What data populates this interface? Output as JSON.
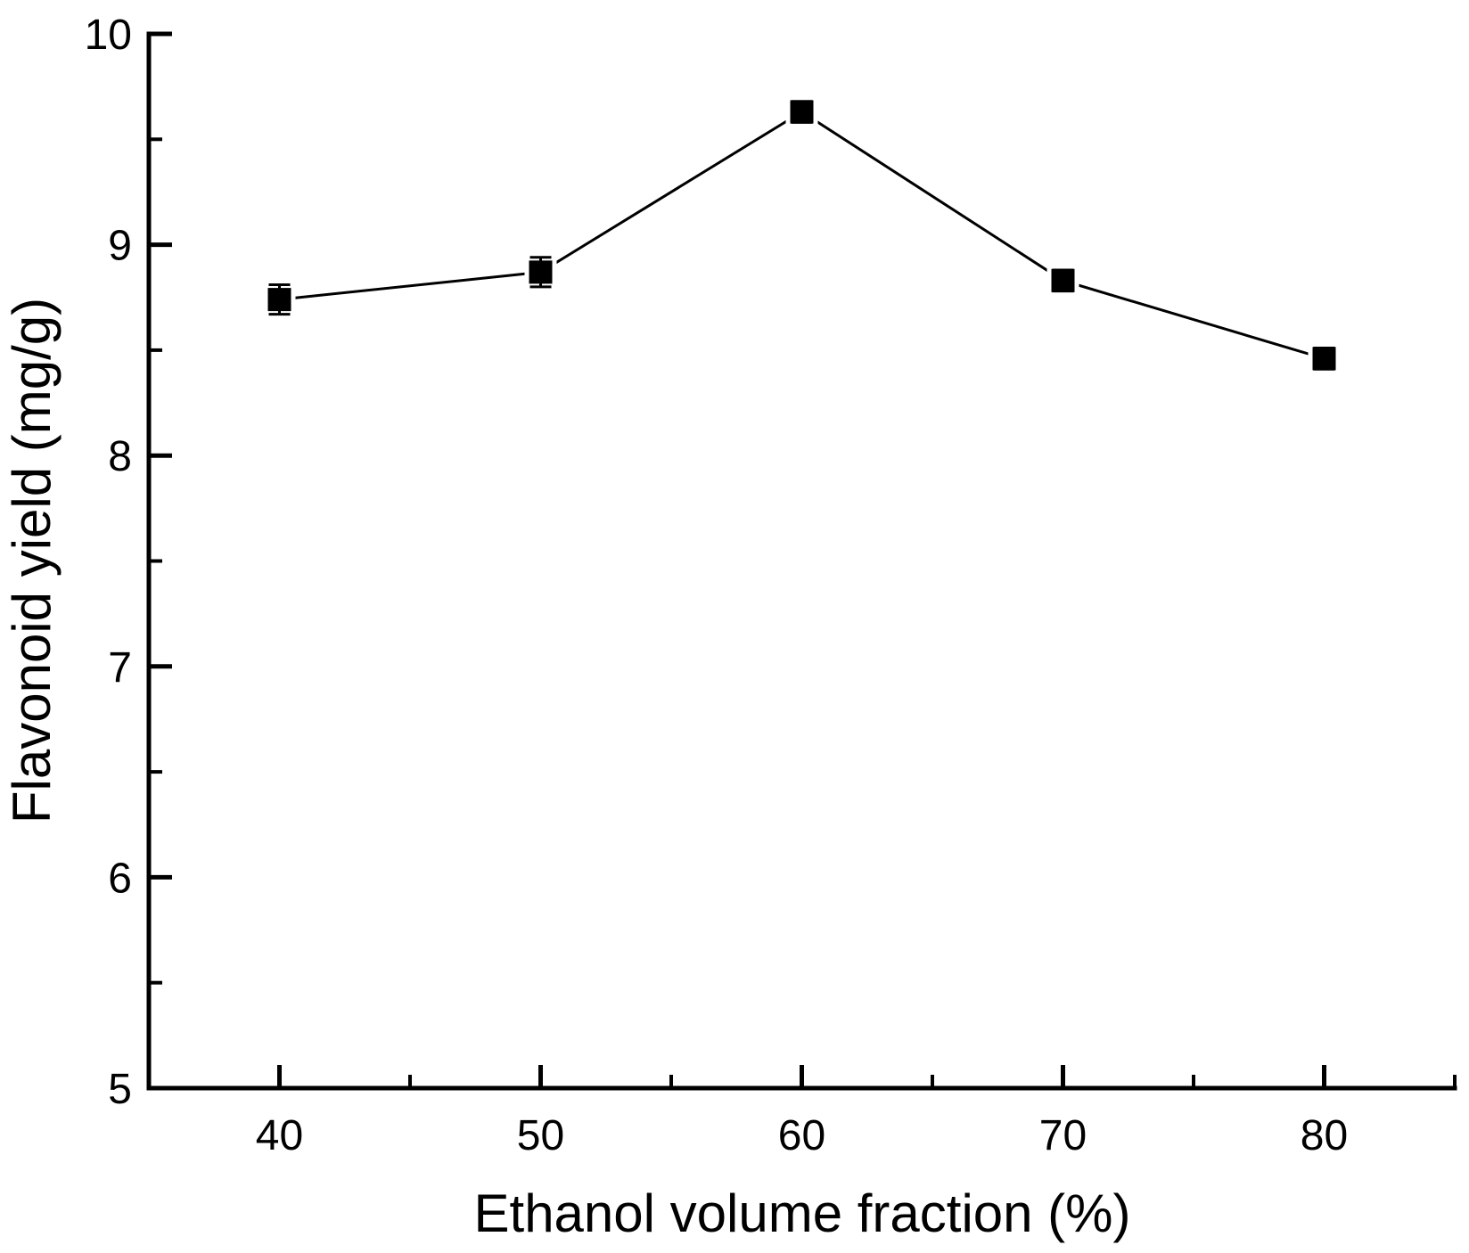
{
  "figure": {
    "background": "#ffffff"
  },
  "chart_data": {
    "type": "line",
    "title": "",
    "xlabel": "Ethanol volume fraction (%)",
    "ylabel": "Flavonoid yield (mg/g)",
    "x": [
      40,
      50,
      60,
      70,
      80
    ],
    "series": [
      {
        "name": "Flavonoid yield",
        "values": [
          8.74,
          8.87,
          9.63,
          8.83,
          8.46
        ],
        "errors": [
          0.07,
          0.07,
          0.05,
          0.05,
          0.05
        ],
        "marker": "filled-square",
        "color": "#000000"
      }
    ],
    "xlim": [
      35,
      85
    ],
    "ylim": [
      5,
      10
    ],
    "x_major_ticks": [
      40,
      50,
      60,
      70,
      80
    ],
    "x_minor_ticks": [
      45,
      55,
      65,
      75,
      85
    ],
    "y_major_ticks": [
      5,
      6,
      7,
      8,
      9,
      10
    ],
    "y_minor_ticks": [
      5.5,
      6.5,
      7.5,
      8.5,
      9.5
    ],
    "grid": false,
    "legend_position": "none",
    "axis_color": "#000000",
    "text_color": "#000000",
    "background_color": "#ffffff"
  }
}
